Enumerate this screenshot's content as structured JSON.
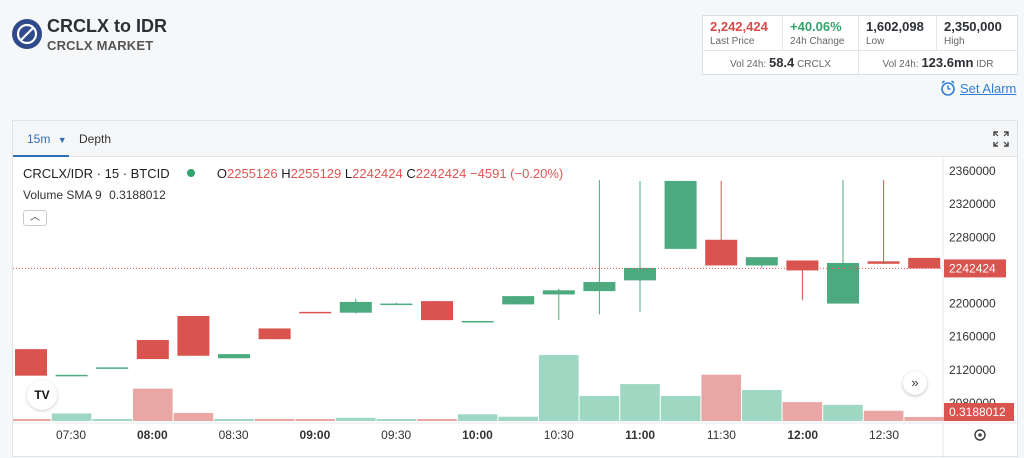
{
  "header": {
    "title": "CRCLX to IDR",
    "subtitle": "CRCLX MARKET",
    "set_alarm": "Set Alarm"
  },
  "stats": {
    "last_price": {
      "value": "2,242,424",
      "label": "Last Price",
      "color": "#d94a4a"
    },
    "change_24h": {
      "value": "+40.06%",
      "label": "24h Change",
      "color": "#33a36b"
    },
    "low": {
      "value": "1,602,098",
      "label": "Low"
    },
    "high": {
      "value": "2,350,000",
      "label": "High"
    },
    "vol_crclx": {
      "label": "Vol 24h:",
      "value": "58.4",
      "unit": "CRCLX"
    },
    "vol_idr": {
      "label": "Vol 24h:",
      "value": "123.6mn",
      "unit": "IDR"
    }
  },
  "toolbar": {
    "interval": "15m",
    "depth": "Depth"
  },
  "legend": {
    "symbol": "CRCLX/IDR · 15 · BTCID",
    "o_label": "O",
    "o": "2255126",
    "h_label": "H",
    "h": "2255129",
    "l_label": "L",
    "l": "2242424",
    "c_label": "C",
    "c": "2242424",
    "change": "−4591 (−0.20%)",
    "volume_label": "Volume SMA 9",
    "volume_value": "0.3188012"
  },
  "chart_data": {
    "type": "candlestick",
    "ylim": [
      2060000,
      2370000
    ],
    "yticks": [
      "2360000",
      "2320000",
      "2280000",
      "2240000",
      "2200000",
      "2160000",
      "2120000",
      "2080000"
    ],
    "xticks": [
      "07:30",
      "08:00",
      "08:30",
      "09:00",
      "09:30",
      "10:00",
      "10:30",
      "11:00",
      "11:30",
      "12:00",
      "12:30"
    ],
    "last_price_label": "2242424",
    "last_price": 2242424,
    "volume_label": "0.3188012",
    "up_color": "#4caa7e",
    "down_color": "#d9534f",
    "candles": [
      {
        "o": 2145000,
        "c": 2113000,
        "h": 2145000,
        "l": 2113000,
        "v": 0.05
      },
      {
        "o": 2113000,
        "c": 2114000,
        "h": 2114000,
        "l": 2113000,
        "v": 0.28
      },
      {
        "o": 2122000,
        "c": 2123000,
        "h": 2123000,
        "l": 2122000,
        "v": 0.02
      },
      {
        "o": 2156000,
        "c": 2133000,
        "h": 2156000,
        "l": 2133000,
        "v": 1.2
      },
      {
        "o": 2185000,
        "c": 2137000,
        "h": 2185000,
        "l": 2137000,
        "v": 0.3
      },
      {
        "o": 2134000,
        "c": 2139000,
        "h": 2139000,
        "l": 2134000,
        "v": 0.02
      },
      {
        "o": 2170000,
        "c": 2157000,
        "h": 2170000,
        "l": 2157000,
        "v": 0.08
      },
      {
        "o": 2190000,
        "c": 2189000,
        "h": 2190000,
        "l": 2189000,
        "v": 0.02
      },
      {
        "o": 2189000,
        "c": 2202000,
        "h": 2206000,
        "l": 2188000,
        "v": 0.12
      },
      {
        "o": 2199000,
        "c": 2200000,
        "h": 2201000,
        "l": 2199000,
        "v": 0.02
      },
      {
        "o": 2203000,
        "c": 2180000,
        "h": 2203000,
        "l": 2180000,
        "v": 0.03
      },
      {
        "o": 2178000,
        "c": 2179000,
        "h": 2179000,
        "l": 2178000,
        "v": 0.25
      },
      {
        "o": 2199000,
        "c": 2209000,
        "h": 2209000,
        "l": 2199000,
        "v": 0.16
      },
      {
        "o": 2211000,
        "c": 2216000,
        "h": 2218000,
        "l": 2180000,
        "v": 2.45
      },
      {
        "o": 2215000,
        "c": 2226000,
        "h": 2349000,
        "l": 2187000,
        "v": 0.93
      },
      {
        "o": 2228000,
        "c": 2243000,
        "h": 2348000,
        "l": 2190000,
        "v": 1.37
      },
      {
        "o": 2266000,
        "c": 2348000,
        "h": 2348000,
        "l": 2266000,
        "v": 0.93
      },
      {
        "o": 2277000,
        "c": 2246000,
        "h": 2348000,
        "l": 2246000,
        "v": 1.72
      },
      {
        "o": 2246000,
        "c": 2256000,
        "h": 2256000,
        "l": 2243000,
        "v": 1.15
      },
      {
        "o": 2252000,
        "c": 2240000,
        "h": 2252000,
        "l": 2204000,
        "v": 0.7
      },
      {
        "o": 2200000,
        "c": 2249000,
        "h": 2349000,
        "l": 2200000,
        "v": 0.6
      },
      {
        "o": 2251000,
        "c": 2248000,
        "h": 2349000,
        "l": 2248000,
        "v": 0.38
      },
      {
        "o": 2255126,
        "c": 2242424,
        "h": 2255129,
        "l": 2242424,
        "v": 0.15
      }
    ]
  }
}
